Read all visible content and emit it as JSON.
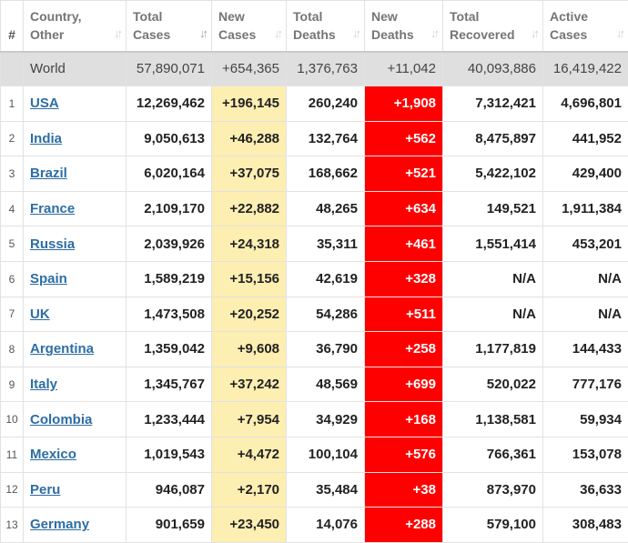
{
  "headers": {
    "index": "#",
    "country": [
      "Country,",
      "Other"
    ],
    "total_cases": [
      "Total",
      "Cases"
    ],
    "new_cases": [
      "New",
      "Cases"
    ],
    "total_deaths": [
      "Total",
      "Deaths"
    ],
    "new_deaths": [
      "New",
      "Deaths"
    ],
    "total_recovered": [
      "Total",
      "Recovered"
    ],
    "active_cases": [
      "Active",
      "Cases"
    ],
    "sort_glyph": "↓↑"
  },
  "colors": {
    "new_cases_bg": "#fdeeb2",
    "new_deaths_bg": "#ff0000",
    "world_row_bg": "#dfdfdf",
    "link": "#2d6da4"
  },
  "world": {
    "country": "World",
    "total_cases": "57,890,071",
    "new_cases": "+654,365",
    "total_deaths": "1,376,763",
    "new_deaths": "+11,042",
    "total_recovered": "40,093,886",
    "active_cases": "16,419,422"
  },
  "rows": [
    {
      "idx": "1",
      "country": "USA",
      "total_cases": "12,269,462",
      "new_cases": "+196,145",
      "total_deaths": "260,240",
      "new_deaths": "+1,908",
      "total_recovered": "7,312,421",
      "active_cases": "4,696,801"
    },
    {
      "idx": "2",
      "country": "India",
      "total_cases": "9,050,613",
      "new_cases": "+46,288",
      "total_deaths": "132,764",
      "new_deaths": "+562",
      "total_recovered": "8,475,897",
      "active_cases": "441,952"
    },
    {
      "idx": "3",
      "country": "Brazil",
      "total_cases": "6,020,164",
      "new_cases": "+37,075",
      "total_deaths": "168,662",
      "new_deaths": "+521",
      "total_recovered": "5,422,102",
      "active_cases": "429,400"
    },
    {
      "idx": "4",
      "country": "France",
      "total_cases": "2,109,170",
      "new_cases": "+22,882",
      "total_deaths": "48,265",
      "new_deaths": "+634",
      "total_recovered": "149,521",
      "active_cases": "1,911,384"
    },
    {
      "idx": "5",
      "country": "Russia",
      "total_cases": "2,039,926",
      "new_cases": "+24,318",
      "total_deaths": "35,311",
      "new_deaths": "+461",
      "total_recovered": "1,551,414",
      "active_cases": "453,201"
    },
    {
      "idx": "6",
      "country": "Spain",
      "total_cases": "1,589,219",
      "new_cases": "+15,156",
      "total_deaths": "42,619",
      "new_deaths": "+328",
      "total_recovered": "N/A",
      "active_cases": "N/A"
    },
    {
      "idx": "7",
      "country": "UK",
      "total_cases": "1,473,508",
      "new_cases": "+20,252",
      "total_deaths": "54,286",
      "new_deaths": "+511",
      "total_recovered": "N/A",
      "active_cases": "N/A"
    },
    {
      "idx": "8",
      "country": "Argentina",
      "total_cases": "1,359,042",
      "new_cases": "+9,608",
      "total_deaths": "36,790",
      "new_deaths": "+258",
      "total_recovered": "1,177,819",
      "active_cases": "144,433"
    },
    {
      "idx": "9",
      "country": "Italy",
      "total_cases": "1,345,767",
      "new_cases": "+37,242",
      "total_deaths": "48,569",
      "new_deaths": "+699",
      "total_recovered": "520,022",
      "active_cases": "777,176"
    },
    {
      "idx": "10",
      "country": "Colombia",
      "total_cases": "1,233,444",
      "new_cases": "+7,954",
      "total_deaths": "34,929",
      "new_deaths": "+168",
      "total_recovered": "1,138,581",
      "active_cases": "59,934"
    },
    {
      "idx": "11",
      "country": "Mexico",
      "total_cases": "1,019,543",
      "new_cases": "+4,472",
      "total_deaths": "100,104",
      "new_deaths": "+576",
      "total_recovered": "766,361",
      "active_cases": "153,078"
    },
    {
      "idx": "12",
      "country": "Peru",
      "total_cases": "946,087",
      "new_cases": "+2,170",
      "total_deaths": "35,484",
      "new_deaths": "+38",
      "total_recovered": "873,970",
      "active_cases": "36,633"
    },
    {
      "idx": "13",
      "country": "Germany",
      "total_cases": "901,659",
      "new_cases": "+23,450",
      "total_deaths": "14,076",
      "new_deaths": "+288",
      "total_recovered": "579,100",
      "active_cases": "308,483"
    }
  ]
}
